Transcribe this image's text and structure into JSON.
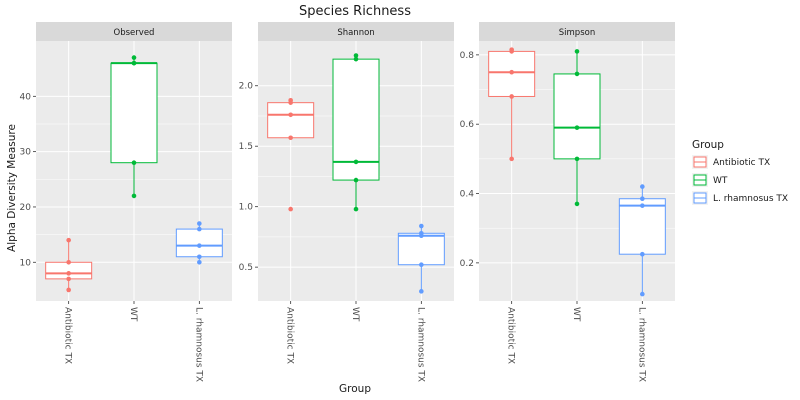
{
  "chart_data": {
    "type": "boxplot",
    "title": "Species Richness",
    "xlabel": "Group",
    "ylabel": "Alpha Diversity Measure",
    "categories": [
      "Antibiotic TX",
      "WT",
      "L. rhamnosus TX"
    ],
    "legend": {
      "title": "Group",
      "position": "right",
      "entries": [
        "Antibiotic TX",
        "WT",
        "L. rhamnosus TX"
      ]
    },
    "colors": {
      "Antibiotic TX": "#F8766D",
      "WT": "#00BA38",
      "L. rhamnosus TX": "#619CFF",
      "panel_bg": "#EBEBEB",
      "strip_bg": "#D9D9D9",
      "grid": "#FFFFFF"
    },
    "grid": true,
    "panels": [
      {
        "name": "Observed",
        "ylim": [
          3,
          50
        ],
        "yticks": [
          10,
          20,
          30,
          40
        ],
        "tick_labels": [
          "10",
          "20",
          "30",
          "40"
        ],
        "boxes": [
          {
            "group": "Antibiotic TX",
            "lower_whisker": 5,
            "q1": 7,
            "median": 8,
            "q3": 10,
            "upper_whisker": 14,
            "points": [
              5,
              7,
              8,
              10,
              14
            ]
          },
          {
            "group": "WT",
            "lower_whisker": 22,
            "q1": 28,
            "median": 46,
            "q3": 46,
            "upper_whisker": 47,
            "points": [
              22,
              28,
              46,
              46,
              47
            ]
          },
          {
            "group": "L. rhamnosus TX",
            "lower_whisker": 10,
            "q1": 11,
            "median": 13,
            "q3": 16,
            "upper_whisker": 17,
            "points": [
              10,
              11,
              13,
              16,
              17
            ]
          }
        ]
      },
      {
        "name": "Shannon",
        "ylim": [
          0.22,
          2.37
        ],
        "yticks": [
          0.5,
          1.0,
          1.5,
          2.0
        ],
        "tick_labels": [
          "0.5",
          "1.0",
          "1.5",
          "2.0"
        ],
        "boxes": [
          {
            "group": "Antibiotic TX",
            "lower_whisker": 1.57,
            "q1": 1.57,
            "median": 1.76,
            "q3": 1.86,
            "upper_whisker": 1.88,
            "points": [
              0.98,
              1.57,
              1.76,
              1.86,
              1.88
            ]
          },
          {
            "group": "WT",
            "lower_whisker": 0.98,
            "q1": 1.22,
            "median": 1.37,
            "q3": 2.22,
            "upper_whisker": 2.25,
            "points": [
              0.98,
              1.22,
              1.37,
              2.22,
              2.25
            ]
          },
          {
            "group": "L. rhamnosus TX",
            "lower_whisker": 0.3,
            "q1": 0.52,
            "median": 0.76,
            "q3": 0.78,
            "upper_whisker": 0.84,
            "points": [
              0.3,
              0.52,
              0.76,
              0.78,
              0.84
            ]
          }
        ]
      },
      {
        "name": "Simpson",
        "ylim": [
          0.09,
          0.84
        ],
        "yticks": [
          0.2,
          0.4,
          0.6,
          0.8
        ],
        "tick_labels": [
          "0.2",
          "0.4",
          "0.6",
          "0.8"
        ],
        "boxes": [
          {
            "group": "Antibiotic TX",
            "lower_whisker": 0.5,
            "q1": 0.68,
            "median": 0.75,
            "q3": 0.81,
            "upper_whisker": 0.815,
            "points": [
              0.5,
              0.68,
              0.75,
              0.81,
              0.815
            ]
          },
          {
            "group": "WT",
            "lower_whisker": 0.37,
            "q1": 0.5,
            "median": 0.59,
            "q3": 0.745,
            "upper_whisker": 0.81,
            "points": [
              0.37,
              0.5,
              0.59,
              0.745,
              0.81
            ]
          },
          {
            "group": "L. rhamnosus TX",
            "lower_whisker": 0.11,
            "q1": 0.225,
            "median": 0.365,
            "q3": 0.385,
            "upper_whisker": 0.42,
            "points": [
              0.11,
              0.225,
              0.365,
              0.385,
              0.42
            ]
          }
        ]
      }
    ]
  }
}
